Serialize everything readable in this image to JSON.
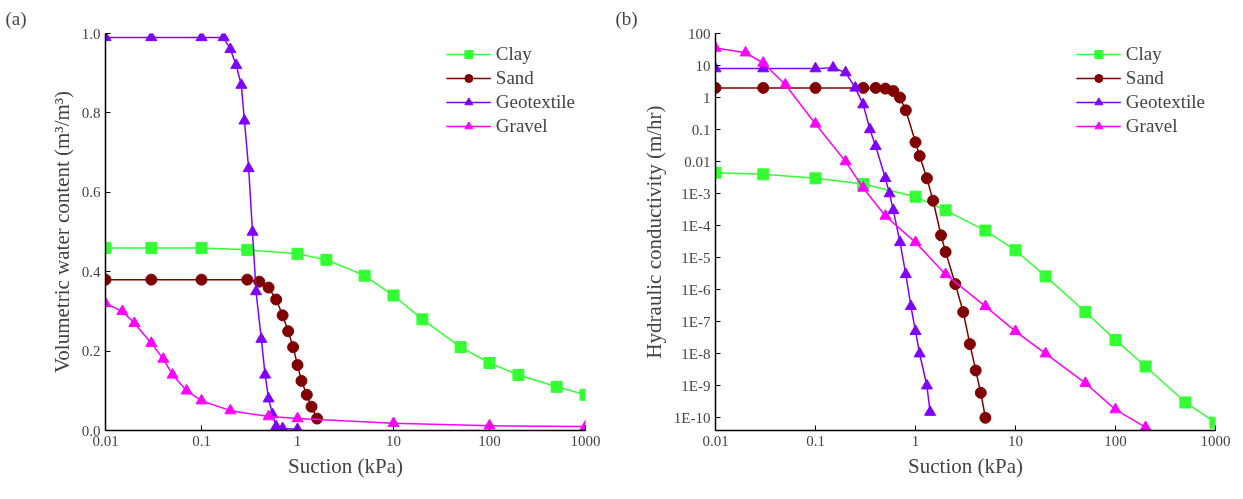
{
  "chart_data": [
    {
      "type": "line",
      "annotations": [
        "(a)"
      ],
      "xlabel": "Suction (kPa)",
      "ylabel": "Volumetric water content (m³/m³)",
      "log": "x",
      "grid": false,
      "legend": "top right",
      "xlim": [
        0.01,
        1000
      ],
      "xticks": [
        0.01,
        0.1,
        1,
        10,
        100,
        1000
      ],
      "ylim": [
        0,
        1.0
      ],
      "yticks": [
        {
          "value": 0,
          "label": "0.0"
        },
        0.2,
        0.4,
        0.6,
        0.8,
        {
          "value": 1.0,
          "label": "1.0"
        }
      ],
      "series": [
        {
          "name": "Clay",
          "color": "#33ff33",
          "marker": "square",
          "x": [
            0.01,
            0.03,
            0.1,
            0.3,
            1,
            2,
            5,
            10,
            20,
            50,
            100,
            200,
            500,
            1000
          ],
          "values": [
            0.46,
            0.46,
            0.46,
            0.455,
            0.445,
            0.43,
            0.39,
            0.34,
            0.28,
            0.21,
            0.17,
            0.14,
            0.11,
            0.09
          ]
        },
        {
          "name": "Sand",
          "color": "#800000",
          "marker": "circle",
          "x": [
            0.01,
            0.03,
            0.1,
            0.3,
            0.4,
            0.5,
            0.6,
            0.7,
            0.8,
            0.9,
            1.0,
            1.1,
            1.25,
            1.4,
            1.6
          ],
          "values": [
            0.38,
            0.38,
            0.38,
            0.38,
            0.375,
            0.36,
            0.33,
            0.29,
            0.25,
            0.21,
            0.165,
            0.125,
            0.09,
            0.06,
            0.03
          ]
        },
        {
          "name": "Geotextile",
          "color": "#8000ff",
          "marker": "triangle",
          "x": [
            0.01,
            0.03,
            0.1,
            0.17,
            0.2,
            0.23,
            0.26,
            0.28,
            0.31,
            0.34,
            0.37,
            0.42,
            0.46,
            0.5,
            0.55,
            0.6,
            0.7,
            1
          ],
          "values": [
            0.99,
            0.99,
            0.99,
            0.99,
            0.96,
            0.92,
            0.87,
            0.78,
            0.66,
            0.5,
            0.35,
            0.23,
            0.14,
            0.08,
            0.04,
            0.01,
            0.005,
            0.003
          ]
        },
        {
          "name": "Gravel",
          "color": "#ff00ff",
          "marker": "triangle",
          "x": [
            0.01,
            0.015,
            0.02,
            0.03,
            0.04,
            0.05,
            0.07,
            0.1,
            0.2,
            0.5,
            1,
            10,
            100,
            1000
          ],
          "values": [
            0.32,
            0.3,
            0.27,
            0.22,
            0.18,
            0.14,
            0.1,
            0.075,
            0.05,
            0.035,
            0.03,
            0.018,
            0.012,
            0.01
          ]
        }
      ]
    },
    {
      "type": "line",
      "annotations": [
        "(b)"
      ],
      "xlabel": "Suction (kPa)",
      "ylabel": "Hydraulic conductivity (m/hr)",
      "log": "xy",
      "grid": false,
      "legend": "top right",
      "xlim": [
        0.01,
        1000
      ],
      "xticks": [
        0.01,
        0.1,
        1,
        10,
        100,
        1000
      ],
      "ylim": [
        4e-11,
        100
      ],
      "yticks": [
        100,
        10,
        1,
        0.1,
        0.01,
        {
          "value": 0.001,
          "label": "1E-3"
        },
        {
          "value": 0.0001,
          "label": "1E-4"
        },
        {
          "value": 1e-05,
          "label": "1E-5"
        },
        {
          "value": 1e-06,
          "label": "1E-6"
        },
        {
          "value": 1e-07,
          "label": "1E-7"
        },
        {
          "value": 1e-08,
          "label": "1E-8"
        },
        {
          "value": 1e-09,
          "label": "1E-9"
        },
        {
          "value": 1e-10,
          "label": "1E-10"
        }
      ],
      "series": [
        {
          "name": "Clay",
          "color": "#33ff33",
          "marker": "square",
          "x": [
            0.01,
            0.03,
            0.1,
            0.3,
            1,
            2,
            5,
            10,
            20,
            50,
            100,
            200,
            500,
            1000
          ],
          "values": [
            0.0045,
            0.004,
            0.003,
            0.002,
            0.0008,
            0.0003,
            7e-05,
            1.7e-05,
            2.6e-06,
            2e-07,
            2.7e-08,
            4e-09,
            3e-10,
            7e-11
          ]
        },
        {
          "name": "Sand",
          "color": "#800000",
          "marker": "circle",
          "x": [
            0.01,
            0.03,
            0.1,
            0.3,
            0.4,
            0.5,
            0.6,
            0.7,
            0.8,
            1.0,
            1.1,
            1.3,
            1.5,
            1.8,
            2.0,
            2.5,
            3.0,
            3.5,
            4.0,
            4.5,
            5.0
          ],
          "values": [
            2,
            2,
            2,
            2,
            2,
            1.9,
            1.6,
            1.0,
            0.4,
            0.04,
            0.015,
            0.003,
            0.0006,
            5e-05,
            1.5e-05,
            1.5e-06,
            2e-07,
            2e-08,
            3e-09,
            6e-10,
            1e-10
          ]
        },
        {
          "name": "Geotextile",
          "color": "#8000ff",
          "marker": "triangle",
          "x": [
            0.01,
            0.03,
            0.1,
            0.15,
            0.2,
            0.25,
            0.3,
            0.35,
            0.4,
            0.5,
            0.55,
            0.6,
            0.7,
            0.8,
            0.9,
            1.0,
            1.1,
            1.3,
            1.4
          ],
          "values": [
            8,
            8,
            8,
            8.5,
            6,
            2,
            0.6,
            0.1,
            0.03,
            0.003,
            0.001,
            0.0003,
            3e-05,
            3e-06,
            3e-07,
            5e-08,
            1e-08,
            1e-09,
            1.5e-10
          ]
        },
        {
          "name": "Gravel",
          "color": "#ff00ff",
          "marker": "triangle",
          "x": [
            0.01,
            0.02,
            0.03,
            0.05,
            0.1,
            0.2,
            0.3,
            0.5,
            1,
            2,
            5,
            10,
            20,
            50,
            100,
            200
          ],
          "values": [
            35,
            25,
            12,
            2.5,
            0.15,
            0.01,
            0.0015,
            0.0002,
            3e-05,
            3e-06,
            3e-07,
            5e-08,
            1e-08,
            1.2e-09,
            1.8e-10,
            5e-11
          ]
        }
      ]
    }
  ]
}
